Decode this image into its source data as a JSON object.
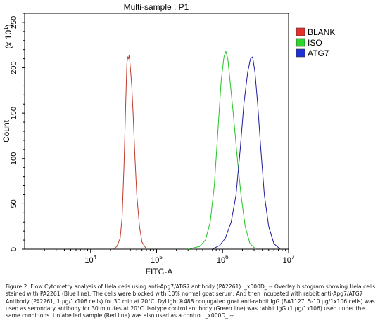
{
  "chart_data": {
    "type": "line",
    "title": "Multi-sample : P1",
    "xlabel": "FITC-A",
    "ylabel": "Count",
    "y_multiplier_label": "(x 10",
    "y_multiplier_exp": "1",
    "y_multiplier_close": ")",
    "xscale": "log",
    "xlim": [
      1000,
      10000000
    ],
    "ylim": [
      0,
      260
    ],
    "yticks": [
      0,
      50,
      100,
      150,
      200,
      250
    ],
    "xticks": [
      {
        "value": 10000,
        "base": "10",
        "exp": "4"
      },
      {
        "value": 100000,
        "base": "10",
        "exp": "5"
      },
      {
        "value": 1000000,
        "base": "10",
        "exp": "6"
      },
      {
        "value": 10000000,
        "base": "10",
        "exp": "7"
      }
    ],
    "legend_position": "right",
    "series": [
      {
        "name": "BLANK",
        "color": "#e8302a",
        "legend_color": "#e8302a",
        "line_color": "#c0392b",
        "x": [
          22000,
          25000,
          28000,
          30000,
          32000,
          34000,
          35500,
          36500,
          37500,
          38500,
          40000,
          42000,
          44000,
          47000,
          50000,
          55000,
          60000,
          70000
        ],
        "y": [
          0,
          3,
          12,
          35,
          90,
          160,
          205,
          212,
          210,
          214,
          200,
          180,
          150,
          100,
          60,
          25,
          8,
          0
        ]
      },
      {
        "name": "ISO",
        "color": "#2ad62a",
        "legend_color": "#2ad62a",
        "line_color": "#22c422",
        "x": [
          300000,
          450000,
          550000,
          650000,
          750000,
          850000,
          950000,
          1050000,
          1120000,
          1200000,
          1300000,
          1450000,
          1650000,
          1900000,
          2200000,
          2600000,
          3200000
        ],
        "y": [
          0,
          3,
          10,
          30,
          70,
          130,
          185,
          212,
          218,
          210,
          185,
          150,
          105,
          60,
          25,
          6,
          0
        ]
      },
      {
        "name": "ATG7",
        "color": "#1f2fd6",
        "legend_color": "#1f2fd6",
        "line_color": "#1c1c9e",
        "x": [
          700000,
          900000,
          1100000,
          1350000,
          1600000,
          1850000,
          2100000,
          2400000,
          2650000,
          2850000,
          3100000,
          3400000,
          3800000,
          4300000,
          5000000,
          6000000,
          7500000
        ],
        "y": [
          0,
          4,
          12,
          30,
          60,
          110,
          160,
          195,
          210,
          212,
          195,
          160,
          110,
          60,
          25,
          6,
          0
        ]
      }
    ]
  },
  "caption": "Figure 2. Flow Cytometry analysis of Hela cells using anti-Apg7/ATG7 antibody (PA2261). _x000D_ -- Overlay histogram showing Hela cells stained with PA2261 (Blue line). The cells were blocked with 10% normal goat serum. And then incubated with rabbit anti-Apg7/ATG7 Antibody (PA2261, 1 μg/1x106 cells) for 30 min at 20°C. DyLight®488 conjugated goat anti-rabbit IgG (BA1127, 5-10 μg/1x106 cells) was used as secondary antibody for 30 minutes at 20°C. Isotype control antibody (Green line) was rabbit IgG (1 μg/1x106) used under the same conditions. Unlabelled sample (Red line) was also used as a control. _x000D_ --"
}
